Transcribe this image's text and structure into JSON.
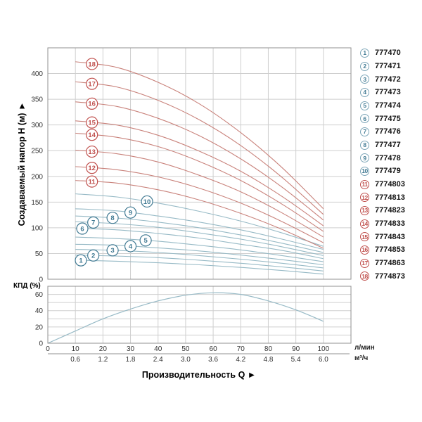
{
  "axes": {
    "y_title": "Создаваемый напор Н (м)  ►",
    "x_title": "Производительность Q  ►",
    "eff_label": "КПД (%)",
    "unit_primary": "л/мин",
    "unit_secondary": "м³/ч"
  },
  "colors": {
    "red_curve": "#c9827b",
    "blue_curve": "#97bac6",
    "red_label": "#c0504d",
    "blue_label": "#417a93",
    "grid": "#cfcfcf",
    "border": "#909090",
    "tick_text": "#333333"
  },
  "x_axis": {
    "primary_ticks": [
      0,
      10,
      20,
      30,
      40,
      50,
      60,
      70,
      80,
      90,
      100
    ],
    "secondary_ticks": [
      "0.6",
      "1.2",
      "1.8",
      "2.4",
      "3.0",
      "3.6",
      "4.2",
      "4.8",
      "5.4",
      "6.0"
    ]
  },
  "legend": {
    "items": [
      {
        "num": "1",
        "code": "777470",
        "group": "blue"
      },
      {
        "num": "2",
        "code": "777471",
        "group": "blue"
      },
      {
        "num": "3",
        "code": "777472",
        "group": "blue"
      },
      {
        "num": "4",
        "code": "777473",
        "group": "blue"
      },
      {
        "num": "5",
        "code": "777474",
        "group": "blue"
      },
      {
        "num": "6",
        "code": "777475",
        "group": "blue"
      },
      {
        "num": "7",
        "code": "777476",
        "group": "blue"
      },
      {
        "num": "8",
        "code": "777477",
        "group": "blue"
      },
      {
        "num": "9",
        "code": "777478",
        "group": "blue"
      },
      {
        "num": "10",
        "code": "777479",
        "group": "blue"
      },
      {
        "num": "11",
        "code": "7774803",
        "group": "red"
      },
      {
        "num": "12",
        "code": "7774813",
        "group": "red"
      },
      {
        "num": "13",
        "code": "7774823",
        "group": "red"
      },
      {
        "num": "14",
        "code": "7774833",
        "group": "red"
      },
      {
        "num": "15",
        "code": "7774843",
        "group": "red"
      },
      {
        "num": "16",
        "code": "7774853",
        "group": "red"
      },
      {
        "num": "17",
        "code": "7774863",
        "group": "red"
      },
      {
        "num": "18",
        "code": "7774873",
        "group": "red"
      }
    ]
  },
  "chart_data": [
    {
      "type": "line",
      "title": "Pump head curves H(Q)",
      "xlabel": "Производительность Q (л/мин)",
      "ylabel": "Создаваемый напор Н (м)",
      "xlim": [
        0,
        110
      ],
      "ylim": [
        0,
        450
      ],
      "x_grid_step": 10,
      "y_grid_step": 50,
      "y_ticks": [
        0,
        50,
        100,
        150,
        200,
        250,
        300,
        350,
        400
      ],
      "grid": true,
      "legend_position": "right",
      "series": [
        {
          "name": "777470",
          "label": "1",
          "group": "blue",
          "label_q": 12,
          "points": [
            [
              10,
              37
            ],
            [
              25,
              35
            ],
            [
              40,
              32
            ],
            [
              55,
              28
            ],
            [
              70,
              23
            ],
            [
              85,
              17
            ],
            [
              100,
              10
            ]
          ]
        },
        {
          "name": "777471",
          "label": "2",
          "group": "blue",
          "label_q": 16.5,
          "points": [
            [
              10,
              47
            ],
            [
              25,
              45
            ],
            [
              40,
              42
            ],
            [
              55,
              37
            ],
            [
              70,
              31
            ],
            [
              85,
              24
            ],
            [
              100,
              16
            ]
          ]
        },
        {
          "name": "777472",
          "label": "3",
          "group": "blue",
          "label_q": 23.5,
          "points": [
            [
              10,
              58
            ],
            [
              25,
              56
            ],
            [
              40,
              52
            ],
            [
              55,
              46
            ],
            [
              70,
              39
            ],
            [
              85,
              31
            ],
            [
              100,
              22
            ]
          ]
        },
        {
          "name": "777473",
          "label": "4",
          "group": "blue",
          "label_q": 30,
          "points": [
            [
              10,
              68
            ],
            [
              25,
              66
            ],
            [
              40,
              61
            ],
            [
              55,
              55
            ],
            [
              70,
              47
            ],
            [
              85,
              38
            ],
            [
              100,
              28
            ]
          ]
        },
        {
          "name": "777474",
          "label": "5",
          "group": "blue",
          "label_q": 35.5,
          "points": [
            [
              10,
              82
            ],
            [
              25,
              79
            ],
            [
              40,
              74
            ],
            [
              55,
              66
            ],
            [
              70,
              57
            ],
            [
              85,
              46
            ],
            [
              100,
              34
            ]
          ]
        },
        {
          "name": "777475",
          "label": "6",
          "group": "blue",
          "label_q": 12.5,
          "points": [
            [
              10,
              99
            ],
            [
              25,
              96
            ],
            [
              40,
              89
            ],
            [
              55,
              80
            ],
            [
              70,
              68
            ],
            [
              85,
              56
            ],
            [
              100,
              40
            ]
          ]
        },
        {
          "name": "777476",
          "label": "7",
          "group": "blue",
          "label_q": 16.5,
          "points": [
            [
              10,
              112
            ],
            [
              25,
              108
            ],
            [
              40,
              101
            ],
            [
              55,
              90
            ],
            [
              70,
              78
            ],
            [
              85,
              63
            ],
            [
              100,
              46
            ]
          ]
        },
        {
          "name": "777477",
          "label": "8",
          "group": "blue",
          "label_q": 23.5,
          "points": [
            [
              10,
              123
            ],
            [
              25,
              119
            ],
            [
              40,
              111
            ],
            [
              55,
              100
            ],
            [
              70,
              86
            ],
            [
              85,
              70
            ],
            [
              100,
              52
            ]
          ]
        },
        {
          "name": "777478",
          "label": "9",
          "group": "blue",
          "label_q": 30,
          "points": [
            [
              10,
              137
            ],
            [
              25,
              133
            ],
            [
              40,
              123
            ],
            [
              55,
              111
            ],
            [
              70,
              96
            ],
            [
              85,
              78
            ],
            [
              100,
              58
            ]
          ]
        },
        {
          "name": "777479",
          "label": "10",
          "group": "blue",
          "label_q": 36,
          "points": [
            [
              10,
              166
            ],
            [
              25,
              160
            ],
            [
              40,
              148
            ],
            [
              55,
              132
            ],
            [
              70,
              113
            ],
            [
              85,
              90
            ],
            [
              100,
              64
            ]
          ]
        },
        {
          "name": "7774803",
          "label": "11",
          "group": "red",
          "label_q": 16,
          "points": [
            [
              10,
              192
            ],
            [
              25,
              187
            ],
            [
              40,
              174
            ],
            [
              55,
              154
            ],
            [
              70,
              128
            ],
            [
              85,
              97
            ],
            [
              100,
              60
            ]
          ]
        },
        {
          "name": "7774813",
          "label": "12",
          "group": "red",
          "label_q": 16,
          "points": [
            [
              10,
              219
            ],
            [
              25,
              213
            ],
            [
              40,
              199
            ],
            [
              55,
              177
            ],
            [
              70,
              148
            ],
            [
              85,
              112
            ],
            [
              100,
              71
            ]
          ]
        },
        {
          "name": "7774823",
          "label": "13",
          "group": "red",
          "label_q": 16,
          "points": [
            [
              10,
              251
            ],
            [
              25,
              244
            ],
            [
              40,
              228
            ],
            [
              55,
              202
            ],
            [
              70,
              170
            ],
            [
              85,
              129
            ],
            [
              100,
              82
            ]
          ]
        },
        {
          "name": "7774833",
          "label": "14",
          "group": "red",
          "label_q": 16,
          "points": [
            [
              10,
              284
            ],
            [
              25,
              276
            ],
            [
              40,
              258
            ],
            [
              55,
              229
            ],
            [
              70,
              192
            ],
            [
              85,
              146
            ],
            [
              100,
              93
            ]
          ]
        },
        {
          "name": "7774843",
          "label": "15",
          "group": "red",
          "label_q": 16,
          "points": [
            [
              10,
              308
            ],
            [
              25,
              300
            ],
            [
              40,
              280
            ],
            [
              55,
              249
            ],
            [
              70,
              210
            ],
            [
              85,
              161
            ],
            [
              100,
              104
            ]
          ]
        },
        {
          "name": "7774853",
          "label": "16",
          "group": "red",
          "label_q": 16,
          "points": [
            [
              10,
              345
            ],
            [
              25,
              336
            ],
            [
              40,
              313
            ],
            [
              55,
              279
            ],
            [
              70,
              234
            ],
            [
              85,
              179
            ],
            [
              100,
              115
            ]
          ]
        },
        {
          "name": "7774863",
          "label": "17",
          "group": "red",
          "label_q": 16,
          "points": [
            [
              10,
              384
            ],
            [
              25,
              374
            ],
            [
              40,
              348
            ],
            [
              55,
              310
            ],
            [
              70,
              260
            ],
            [
              85,
              198
            ],
            [
              100,
              126
            ]
          ]
        },
        {
          "name": "7774873",
          "label": "18",
          "group": "red",
          "label_q": 16,
          "points": [
            [
              10,
              423
            ],
            [
              25,
              412
            ],
            [
              40,
              383
            ],
            [
              55,
              341
            ],
            [
              70,
              285
            ],
            [
              85,
              217
            ],
            [
              100,
              137
            ]
          ]
        }
      ]
    },
    {
      "type": "line",
      "title": "КПД (%)",
      "ylabel": "КПД (%)",
      "xlim": [
        0,
        110
      ],
      "ylim": [
        0,
        70
      ],
      "y_grid_step": 10,
      "y_ticks": [
        0,
        20,
        40,
        60
      ],
      "grid": true,
      "points": [
        [
          0,
          0
        ],
        [
          10,
          15
        ],
        [
          20,
          30
        ],
        [
          30,
          42
        ],
        [
          40,
          52
        ],
        [
          50,
          59
        ],
        [
          60,
          62
        ],
        [
          70,
          60
        ],
        [
          80,
          52
        ],
        [
          90,
          41
        ],
        [
          100,
          27
        ]
      ]
    }
  ]
}
